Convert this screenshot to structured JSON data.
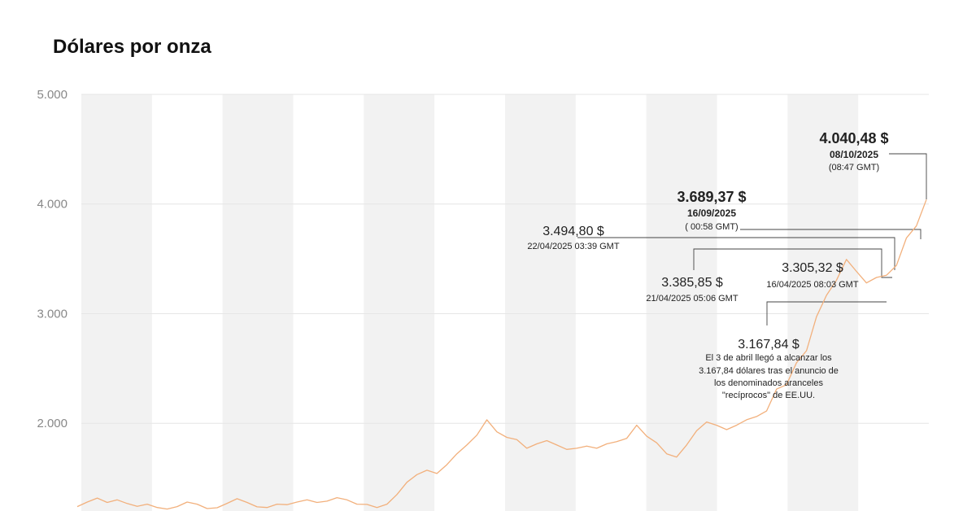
{
  "title": "Dólares por onza",
  "chart_data": {
    "type": "line",
    "title": "Dólares por onza",
    "xlabel": "",
    "ylabel": "",
    "ylim": [
      1200,
      5000
    ],
    "yticks": [
      5000,
      4000,
      3000,
      2000
    ],
    "ytick_labels": [
      "5.000",
      "4.000",
      "3.000",
      "2.000"
    ],
    "grid": true,
    "alternating_bands": 12,
    "colors": {
      "line": "#f2b07c",
      "band": "#f2f2f2",
      "leader": "#444444",
      "grid": "#e6e6e6"
    },
    "series": [
      {
        "values": [
          1240,
          1282,
          1318,
          1278,
          1302,
          1268,
          1242,
          1262,
          1232,
          1218,
          1240,
          1282,
          1262,
          1222,
          1230,
          1270,
          1312,
          1278,
          1238,
          1232,
          1262,
          1258,
          1282,
          1302,
          1278,
          1290,
          1322,
          1302,
          1262,
          1260,
          1232,
          1262,
          1350,
          1462,
          1532,
          1572,
          1542,
          1622,
          1722,
          1802,
          1892,
          2032,
          1922,
          1872,
          1852,
          1772,
          1812,
          1842,
          1802,
          1762,
          1772,
          1792,
          1772,
          1812,
          1832,
          1862,
          1982,
          1882,
          1822,
          1722,
          1692,
          1802,
          1932,
          2012,
          1982,
          1942,
          1982,
          2032,
          2062,
          2112,
          2312,
          2352,
          2552,
          2662,
          2972,
          3167.84,
          3305.32,
          3494.8,
          3385.85,
          3280,
          3330,
          3350,
          3440,
          3689.37,
          3800,
          4040.48
        ]
      }
    ],
    "annotations": [
      {
        "value": "4.040,48 $",
        "date": "08/10/2025",
        "time": "(08:47 GMT)",
        "y": 4040.48
      },
      {
        "value": "3.689,37 $",
        "date": "16/09/2025",
        "time": "( 00:58 GMT)",
        "y": 3689.37
      },
      {
        "value": "3.494,80 $",
        "date": "22/04/2025 03:39 GMT",
        "y": 3494.8
      },
      {
        "value": "3.385,85 $",
        "date": "21/04/2025 05:06 GMT",
        "y": 3385.85
      },
      {
        "value": "3.305,32 $",
        "date": "16/04/2025 08:03 GMT",
        "y": 3305.32
      },
      {
        "value": "3.167,84 $",
        "note": [
          "El 3 de abril llegó a alcanzar los",
          "3.167,84 dólares tras el anuncio de",
          "los denominados aranceles",
          "\"recíprocos\" de EE.UU."
        ],
        "y": 3167.84
      }
    ]
  }
}
